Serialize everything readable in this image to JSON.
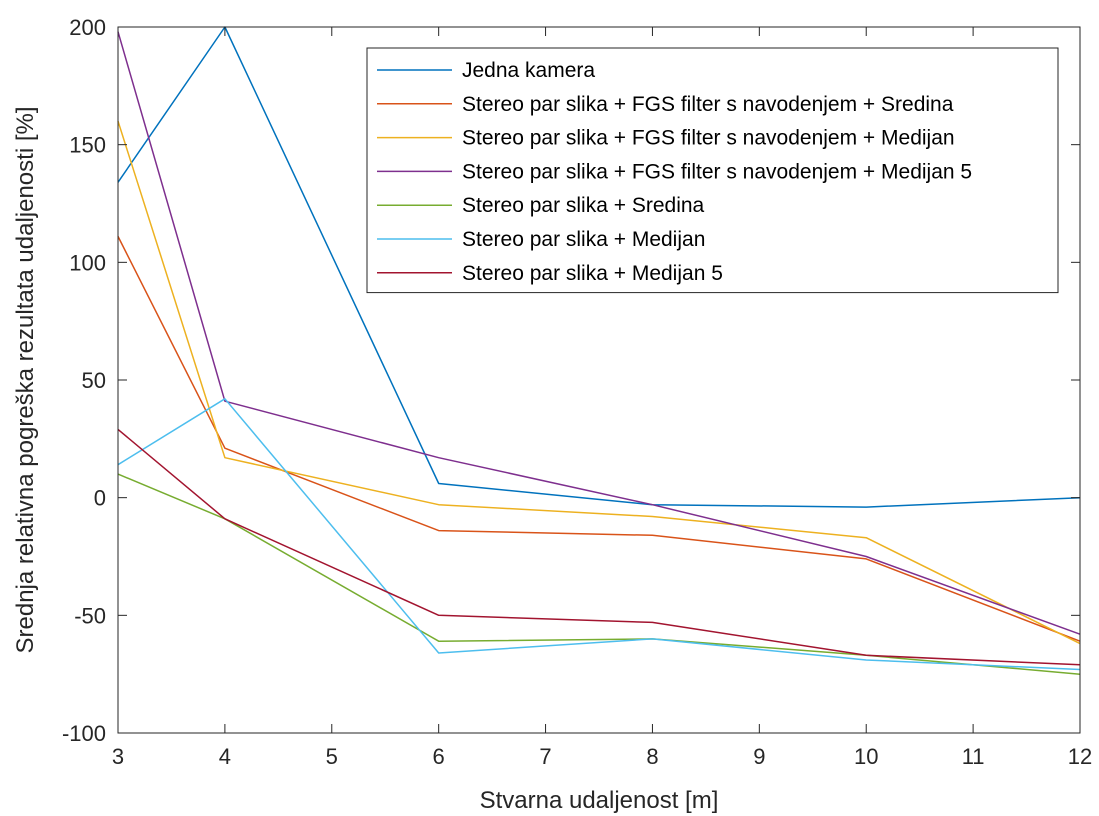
{
  "chart_data": {
    "type": "line",
    "title": "",
    "xlabel": "Stvarna udaljenost [m]",
    "ylabel": "Srednja relativna pogreška rezultata udaljenosti [%]",
    "xlim": [
      3,
      12
    ],
    "ylim": [
      -100,
      200
    ],
    "xticks": [
      3,
      4,
      5,
      6,
      7,
      8,
      9,
      10,
      11,
      12
    ],
    "yticks": [
      -100,
      -50,
      0,
      50,
      100,
      150,
      200
    ],
    "grid": false,
    "legend_position": "top-right",
    "x": [
      3,
      4,
      6,
      8,
      10,
      12
    ],
    "series": [
      {
        "name": "Jedna kamera",
        "color": "#0072BD",
        "values": [
          134,
          200,
          6,
          -3,
          -4,
          0
        ]
      },
      {
        "name": "Stereo par slika + FGS filter s navodenjem + Sredina",
        "color": "#D95319",
        "values": [
          111,
          21,
          -14,
          -16,
          -26,
          -61
        ]
      },
      {
        "name": "Stereo par slika + FGS filter s navodenjem + Medijan",
        "color": "#EDB120",
        "values": [
          160,
          17,
          -3,
          -8,
          -17,
          -62
        ]
      },
      {
        "name": "Stereo par slika + FGS filter s navodenjem + Medijan 5",
        "color": "#7E2F8E",
        "values": [
          198,
          41,
          17,
          -3,
          -25,
          -58
        ]
      },
      {
        "name": "Stereo par slika + Sredina",
        "color": "#77AC30",
        "values": [
          10,
          -9,
          -61,
          -60,
          -67,
          -75
        ]
      },
      {
        "name": "Stereo par slika + Medijan",
        "color": "#4DBEEE",
        "values": [
          14,
          42,
          -66,
          -60,
          -69,
          -73
        ]
      },
      {
        "name": "Stereo par slika + Medijan 5",
        "color": "#A2142F",
        "values": [
          29,
          -9,
          -50,
          -53,
          -67,
          -71
        ]
      }
    ]
  }
}
